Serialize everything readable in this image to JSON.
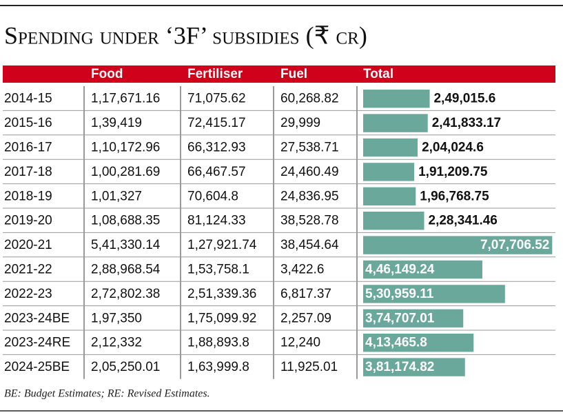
{
  "title": "Spending under ‘3F’ subsidies (₹ cr)",
  "table": {
    "columns": [
      "Food",
      "Fertiliser",
      "Fuel",
      "Total"
    ],
    "rows": [
      [
        "2014-15",
        "1,17,671.16",
        "71,075.62",
        "60,268.82"
      ],
      [
        "2015-16",
        "1,39,419",
        "72,415.17",
        "29,999"
      ],
      [
        "2016-17",
        "1,10,172.96",
        "66,312.93",
        "27,538.71"
      ],
      [
        "2017-18",
        "1,00,281.69",
        "66,467.57",
        "24,460.49"
      ],
      [
        "2018-19",
        "1,01,327",
        "70,604.8",
        "24,836.95"
      ],
      [
        "2019-20",
        "1,08,688.35",
        "81,124.33",
        "38,528.78"
      ],
      [
        "2020-21",
        "5,41,330.14",
        "1,27,921.74",
        "38,454.64"
      ],
      [
        "2021-22",
        "2,88,968.54",
        "1,53,758.1",
        "3,422.6"
      ],
      [
        "2022-23",
        "2,72,802.38",
        "2,51,339.36",
        "6,817.37"
      ],
      [
        "2023-24BE",
        "1,97,350",
        "1,75,099.92",
        "2,257.09"
      ],
      [
        "2023-24RE",
        "2,12,332",
        "1,88,893.8",
        "12,240"
      ],
      [
        "2024-25BE",
        "2,05,250.01",
        "1,63,999.8",
        "11,925.01"
      ]
    ]
  },
  "total_bars": {
    "color": "#6aa89c",
    "xlim": [
      0,
      712000
    ],
    "values": [
      249015.6,
      241833.17,
      204024.6,
      191209.75,
      196768.75,
      228341.46,
      707706.52,
      446149.24,
      530959.11,
      374707.01,
      413465.8,
      381174.82
    ],
    "value_labels": [
      "2,49,015.6",
      "2,41,833.17",
      "2,04,024.6",
      "1,91,209.75",
      "1,96,768.75",
      "2,28,341.46",
      "7,07,706.52",
      "4,46,149.24",
      "5,30,959.11",
      "3,74,707.01",
      "4,13,465.8",
      "3,81,174.82"
    ]
  },
  "footnote": "BE: Budget Estimates; RE: Revised Estimates."
}
